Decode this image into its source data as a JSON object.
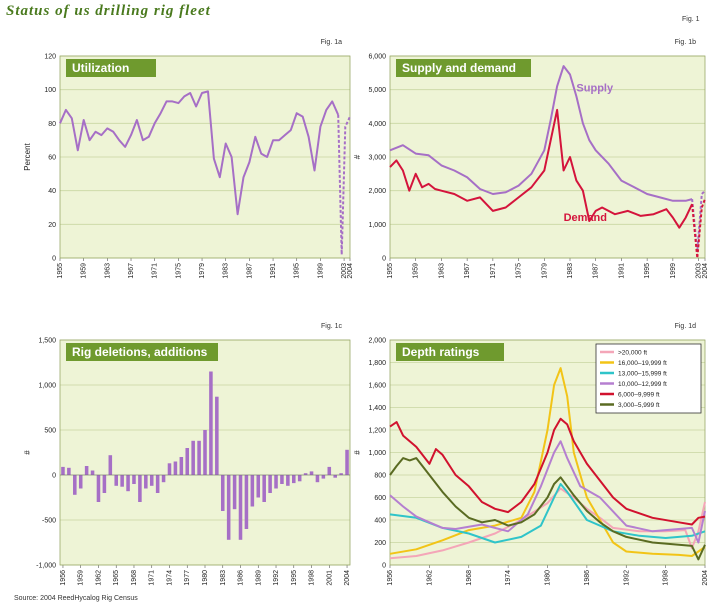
{
  "page": {
    "title": "Status of us drilling rig fleet",
    "fig_main": "Fig. 1",
    "source": "Source: 2004 ReedHycalog Rig Census"
  },
  "colors": {
    "panel_bg": "#eef4d6",
    "title_box": "#6f9a2e",
    "purple": "#a66fc6",
    "red": "#d4143c",
    "grid": "#c9d6a2"
  },
  "chart_data": [
    {
      "id": "utilization",
      "type": "line",
      "fig_label": "Fig. 1a",
      "title": "Utilization",
      "ylabel": "Percent",
      "ylim": [
        0,
        120
      ],
      "yticks": [
        0,
        20,
        40,
        60,
        80,
        100,
        120
      ],
      "ytick_labels": [
        "0",
        "20",
        "40",
        "60",
        "80",
        "100",
        "120"
      ],
      "xlim": [
        1955,
        2004
      ],
      "xticks": [
        1955,
        1959,
        1963,
        1967,
        1971,
        1975,
        1979,
        1983,
        1987,
        1991,
        1995,
        1999,
        2003,
        2004
      ],
      "xtick_labels": [
        "1955",
        "1959",
        "1963",
        "1967",
        "1971",
        "1975",
        "1979",
        "1983",
        "1987",
        "1991",
        "1995",
        "1999",
        "2003",
        "2004"
      ],
      "grid": true,
      "series": [
        {
          "color": "#a66fc6",
          "x": [
            1955,
            1956,
            1957,
            1958,
            1959,
            1960,
            1961,
            1962,
            1963,
            1964,
            1965,
            1966,
            1967,
            1968,
            1969,
            1970,
            1971,
            1972,
            1973,
            1974,
            1975,
            1976,
            1977,
            1978,
            1979,
            1980,
            1981,
            1982,
            1983,
            1984,
            1985,
            1986,
            1987,
            1988,
            1989,
            1990,
            1991,
            1992,
            1993,
            1994,
            1995,
            1996,
            1997,
            1998,
            1999,
            2000,
            2001,
            2002
          ],
          "y": [
            80,
            88,
            83,
            64,
            82,
            70,
            75,
            73,
            77,
            75,
            70,
            66,
            73,
            82,
            70,
            72,
            80,
            86,
            93,
            93,
            92,
            96,
            98,
            90,
            98,
            99,
            59,
            48,
            68,
            60,
            26,
            48,
            57,
            72,
            62,
            60,
            70,
            70,
            73,
            76,
            86,
            84,
            72,
            52,
            78,
            88,
            93,
            85
          ]
        },
        {
          "color": "#a66fc6",
          "dashed": true,
          "x": [
            2002,
            2002.6,
            2003.2,
            2004
          ],
          "y": [
            85,
            2,
            78,
            84
          ]
        }
      ]
    },
    {
      "id": "supply_demand",
      "type": "line",
      "fig_label": "Fig. 1b",
      "title": "Supply and demand",
      "ylabel": "#",
      "ylim": [
        0,
        6000
      ],
      "yticks": [
        0,
        1000,
        2000,
        3000,
        4000,
        5000,
        6000
      ],
      "ytick_labels": [
        "0",
        "1,000",
        "2,000",
        "3,000",
        "4,000",
        "5,000",
        "6,000"
      ],
      "xlim": [
        1955,
        2004
      ],
      "xticks": [
        1955,
        1959,
        1963,
        1967,
        1971,
        1975,
        1979,
        1983,
        1987,
        1991,
        1995,
        1999,
        2003,
        2004
      ],
      "xtick_labels": [
        "1955",
        "1959",
        "1963",
        "1967",
        "1971",
        "1975",
        "1979",
        "1983",
        "1987",
        "1991",
        "1995",
        "1999",
        "2003",
        "2004"
      ],
      "grid": true,
      "series": [
        {
          "name": "Supply",
          "color": "#a66fc6",
          "label_x": 1984,
          "label_y": 4950,
          "x": [
            1955,
            1957,
            1959,
            1961,
            1963,
            1965,
            1967,
            1969,
            1971,
            1973,
            1975,
            1977,
            1979,
            1980,
            1981,
            1982,
            1983,
            1984,
            1985,
            1986,
            1987,
            1989,
            1991,
            1993,
            1995,
            1997,
            1999,
            2001,
            2002
          ],
          "y": [
            3200,
            3350,
            3100,
            3050,
            2750,
            2600,
            2400,
            2050,
            1900,
            1950,
            2150,
            2500,
            3200,
            4100,
            5100,
            5700,
            5450,
            4800,
            4000,
            3500,
            3200,
            2800,
            2300,
            2100,
            1900,
            1800,
            1700,
            1700,
            1750
          ]
        },
        {
          "name": "Demand",
          "color": "#d4143c",
          "label_x": 1982,
          "label_y": 1100,
          "x": [
            1955,
            1956,
            1957,
            1958,
            1959,
            1960,
            1961,
            1962,
            1963,
            1965,
            1967,
            1969,
            1971,
            1973,
            1975,
            1977,
            1979,
            1980,
            1981,
            1982,
            1983,
            1984,
            1985,
            1986,
            1987,
            1988,
            1990,
            1992,
            1994,
            1996,
            1998,
            1999,
            2000,
            2001,
            2002
          ],
          "y": [
            2700,
            2900,
            2600,
            2000,
            2500,
            2100,
            2200,
            2050,
            2000,
            1900,
            1700,
            1800,
            1400,
            1500,
            1800,
            2100,
            2600,
            3500,
            4400,
            2600,
            3000,
            2300,
            2000,
            1100,
            1400,
            1500,
            1300,
            1400,
            1250,
            1300,
            1450,
            1200,
            900,
            1200,
            1600
          ]
        },
        {
          "color": "#a66fc6",
          "dashed": true,
          "x": [
            2002,
            2002.8,
            2003.5,
            2004
          ],
          "y": [
            1750,
            200,
            1900,
            2000
          ]
        },
        {
          "color": "#d4143c",
          "dashed": true,
          "x": [
            2002,
            2002.8,
            2003.5,
            2004
          ],
          "y": [
            1600,
            0,
            1500,
            1750
          ]
        }
      ]
    },
    {
      "id": "deletions_additions",
      "type": "bar",
      "fig_label": "Fig. 1c",
      "title": "Rig deletions, additions",
      "ylabel": "#",
      "ylim": [
        -1000,
        1500
      ],
      "yticks": [
        -1000,
        -500,
        0,
        500,
        1000,
        1500
      ],
      "ytick_labels": [
        "-1,000",
        "-500",
        "0",
        "500",
        "1,000",
        "1,500"
      ],
      "xlim": [
        1955.5,
        2004.5
      ],
      "xticks": [
        1956,
        1959,
        1962,
        1965,
        1968,
        1971,
        1974,
        1977,
        1980,
        1983,
        1986,
        1989,
        1992,
        1995,
        1998,
        2001,
        2004
      ],
      "xtick_labels": [
        "1956",
        "1959",
        "1962",
        "1965",
        "1968",
        "1971",
        "1974",
        "1977",
        "1980",
        "1983",
        "1986",
        "1989",
        "1992",
        "1995",
        "1998",
        "2001",
        "2004"
      ],
      "grid": true,
      "color": "#a66fc6",
      "x": [
        1956,
        1957,
        1958,
        1959,
        1960,
        1961,
        1962,
        1963,
        1964,
        1965,
        1966,
        1967,
        1968,
        1969,
        1970,
        1971,
        1972,
        1973,
        1974,
        1975,
        1976,
        1977,
        1978,
        1979,
        1980,
        1981,
        1982,
        1983,
        1984,
        1985,
        1986,
        1987,
        1988,
        1989,
        1990,
        1991,
        1992,
        1993,
        1994,
        1995,
        1996,
        1997,
        1998,
        1999,
        2000,
        2001,
        2002,
        2003,
        2004
      ],
      "values": [
        90,
        80,
        -220,
        -150,
        100,
        50,
        -300,
        -200,
        220,
        -120,
        -130,
        -180,
        -100,
        -300,
        -150,
        -120,
        -200,
        -80,
        130,
        150,
        200,
        300,
        380,
        380,
        500,
        1150,
        870,
        -400,
        -720,
        -380,
        -720,
        -600,
        -350,
        -250,
        -300,
        -200,
        -150,
        -100,
        -120,
        -90,
        -70,
        20,
        40,
        -80,
        -40,
        90,
        -30,
        20,
        280
      ]
    },
    {
      "id": "depth_ratings",
      "type": "line",
      "fig_label": "Fig. 1d",
      "title": "Depth ratings",
      "ylabel": "#",
      "ylim": [
        0,
        2000
      ],
      "yticks": [
        0,
        200,
        400,
        600,
        800,
        1000,
        1200,
        1400,
        1600,
        1800,
        2000
      ],
      "ytick_labels": [
        "0",
        "200",
        "400",
        "600",
        "800",
        "1,000",
        "1,200",
        "1,400",
        "1,600",
        "1,800",
        "2,000"
      ],
      "xlim": [
        1956,
        2004
      ],
      "xticks": [
        1956,
        1962,
        1968,
        1974,
        1980,
        1986,
        1992,
        1998,
        2004
      ],
      "xtick_labels": [
        "1956",
        "1962",
        "1968",
        "1974",
        "1980",
        "1986",
        "1992",
        "1998",
        "2004"
      ],
      "grid": true,
      "legend": "top-right",
      "series": [
        {
          "name": ">20,000 ft",
          "color": "#f4a6b8",
          "x": [
            1956,
            1960,
            1964,
            1968,
            1972,
            1976,
            1980,
            1982,
            1984,
            1986,
            1988,
            1990,
            1994,
            1998,
            2001,
            2002,
            2003,
            2004
          ],
          "y": [
            60,
            80,
            130,
            200,
            280,
            400,
            550,
            680,
            600,
            500,
            420,
            330,
            300,
            300,
            310,
            150,
            300,
            560
          ]
        },
        {
          "name": "16,000–19,999 ft",
          "color": "#f2c417",
          "x": [
            1956,
            1960,
            1964,
            1968,
            1972,
            1976,
            1978,
            1980,
            1981,
            1982,
            1983,
            1984,
            1986,
            1988,
            1990,
            1992,
            1996,
            2000,
            2002,
            2003,
            2004
          ],
          "y": [
            100,
            140,
            220,
            310,
            350,
            420,
            650,
            1200,
            1600,
            1750,
            1500,
            1000,
            600,
            400,
            200,
            120,
            100,
            90,
            80,
            120,
            160
          ]
        },
        {
          "name": "13,000–15,999 ft",
          "color": "#2fc4c9",
          "x": [
            1956,
            1960,
            1964,
            1968,
            1972,
            1976,
            1979,
            1981,
            1982,
            1983,
            1986,
            1990,
            1994,
            1998,
            2002,
            2004
          ],
          "y": [
            450,
            420,
            330,
            280,
            200,
            250,
            350,
            600,
            720,
            650,
            400,
            300,
            260,
            240,
            260,
            300
          ]
        },
        {
          "name": "10,000–12,999 ft",
          "color": "#b57fd0",
          "x": [
            1956,
            1958,
            1960,
            1962,
            1964,
            1966,
            1970,
            1974,
            1977,
            1979,
            1981,
            1982,
            1983,
            1985,
            1988,
            1992,
            1996,
            2000,
            2002,
            2003,
            2004
          ],
          "y": [
            620,
            520,
            430,
            380,
            330,
            320,
            360,
            300,
            450,
            700,
            1000,
            1100,
            950,
            700,
            600,
            350,
            300,
            320,
            330,
            200,
            480
          ]
        },
        {
          "name": "6,000–9,999 ft",
          "color": "#d1122e",
          "x": [
            1956,
            1957,
            1958,
            1960,
            1962,
            1963,
            1964,
            1966,
            1968,
            1970,
            1972,
            1974,
            1976,
            1978,
            1980,
            1981,
            1982,
            1983,
            1984,
            1986,
            1988,
            1990,
            1992,
            1996,
            2000,
            2002,
            2003,
            2004
          ],
          "y": [
            1230,
            1270,
            1150,
            1050,
            900,
            1030,
            980,
            800,
            700,
            560,
            500,
            470,
            560,
            720,
            1000,
            1200,
            1300,
            1250,
            1100,
            900,
            750,
            600,
            500,
            420,
            380,
            360,
            420,
            430
          ]
        },
        {
          "name": "3,000–5,999 ft",
          "color": "#5a6b22",
          "x": [
            1956,
            1957,
            1958,
            1959,
            1960,
            1962,
            1964,
            1966,
            1968,
            1970,
            1972,
            1974,
            1976,
            1978,
            1980,
            1981,
            1982,
            1983,
            1984,
            1986,
            1988,
            1990,
            1992,
            1996,
            2000,
            2002,
            2003,
            2004
          ],
          "y": [
            800,
            880,
            950,
            930,
            950,
            800,
            650,
            520,
            420,
            380,
            400,
            350,
            380,
            450,
            600,
            720,
            780,
            700,
            620,
            480,
            380,
            300,
            250,
            200,
            180,
            170,
            50,
            180
          ]
        }
      ]
    }
  ]
}
